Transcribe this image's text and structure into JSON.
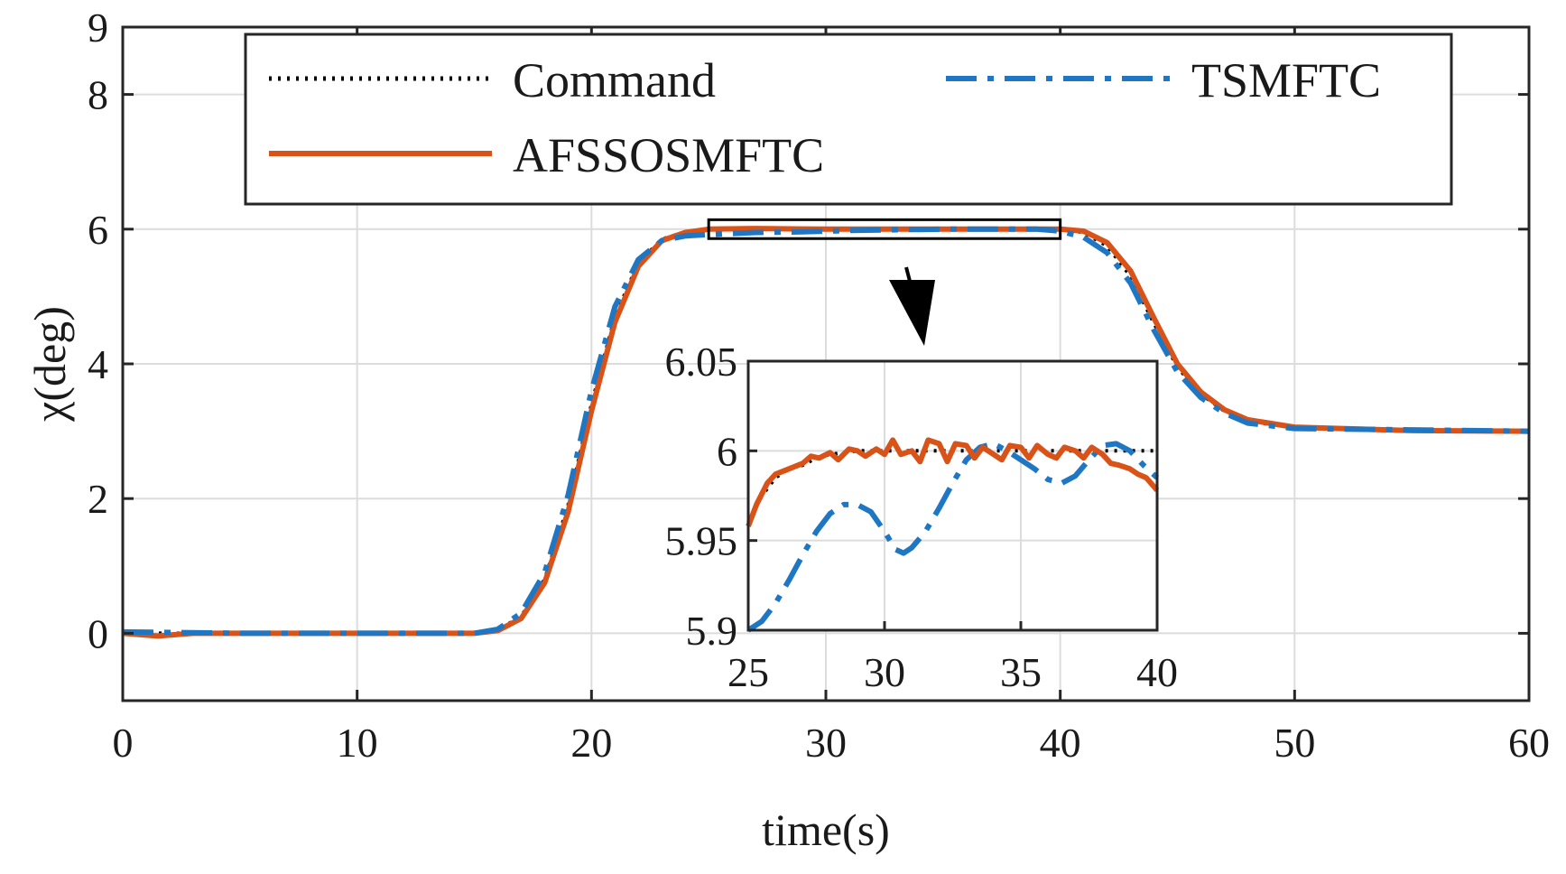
{
  "chart_data": {
    "type": "line",
    "title": "",
    "xlabel": "time(s)",
    "ylabel": "χ(deg)",
    "xlim": [
      0,
      60
    ],
    "ylim": [
      -1,
      9
    ],
    "xticks": [
      0,
      10,
      20,
      30,
      40,
      50,
      60
    ],
    "yticks": [
      0,
      2,
      4,
      6,
      8,
      9
    ],
    "grid": true,
    "legend": {
      "placement": "top",
      "entries": [
        {
          "name": "Command",
          "style": "dotted",
          "color": "#000000"
        },
        {
          "name": "TSMFTC",
          "style": "dashdot",
          "color": "#1f77c4"
        },
        {
          "name": "AFSSOSMFTC",
          "style": "solid",
          "color": "#d95319"
        }
      ]
    },
    "series": [
      {
        "name": "Command",
        "x": [
          0,
          15,
          16,
          17,
          18,
          19,
          20,
          21,
          22,
          23,
          24,
          25,
          27,
          30,
          40,
          41,
          42,
          43,
          44,
          45,
          46,
          47,
          48,
          50,
          55,
          60
        ],
        "y": [
          0,
          0,
          0.05,
          0.25,
          0.8,
          1.9,
          3.4,
          4.7,
          5.5,
          5.85,
          5.96,
          6,
          6,
          6,
          6,
          5.95,
          5.75,
          5.3,
          4.6,
          3.95,
          3.55,
          3.3,
          3.15,
          3.05,
          3,
          3
        ]
      },
      {
        "name": "TSMFTC",
        "x": [
          0,
          5,
          10,
          15,
          16,
          17,
          18,
          19,
          20,
          21,
          22,
          23,
          24,
          25,
          27,
          29,
          31,
          33,
          35,
          37,
          39,
          40,
          41,
          42,
          43,
          44,
          45,
          46,
          47,
          48,
          50,
          55,
          60
        ],
        "y": [
          0.02,
          0,
          0,
          0,
          0.06,
          0.3,
          0.9,
          2.05,
          3.6,
          4.85,
          5.55,
          5.83,
          5.9,
          5.92,
          5.95,
          5.96,
          5.98,
          5.99,
          6,
          6,
          6,
          5.97,
          5.88,
          5.65,
          5.2,
          4.5,
          3.88,
          3.5,
          3.27,
          3.12,
          3.04,
          3.02,
          3
        ]
      },
      {
        "name": "AFSSOSMFTC",
        "x": [
          0,
          1.5,
          3,
          15,
          16,
          17,
          18,
          19,
          20,
          21,
          22,
          23,
          24,
          25,
          27,
          30,
          40,
          41,
          42,
          43,
          44,
          45,
          46,
          47,
          48,
          50,
          55,
          60
        ],
        "y": [
          0,
          -0.04,
          0,
          0,
          0.04,
          0.22,
          0.75,
          1.8,
          3.3,
          4.62,
          5.45,
          5.83,
          5.95,
          6,
          6.01,
          6,
          6,
          5.97,
          5.8,
          5.38,
          4.68,
          4.0,
          3.58,
          3.32,
          3.17,
          3.06,
          3.01,
          3
        ]
      }
    ],
    "zoom_box": {
      "xlim": [
        25,
        40
      ],
      "ylim": [
        5.86,
        6.14
      ]
    },
    "inset": {
      "xlim": [
        25,
        40
      ],
      "ylim": [
        5.9,
        6.05
      ],
      "xticks": [
        25,
        30,
        35,
        40
      ],
      "ytick_labels": [
        "6.05",
        "6",
        "5.95",
        "5.9"
      ],
      "yticks": [
        6.05,
        6,
        5.95,
        5.9
      ],
      "series": [
        {
          "name": "Command",
          "x": [
            25,
            25.5,
            26,
            26.5,
            27,
            27.5,
            28,
            29,
            30,
            35,
            40
          ],
          "y": [
            5.96,
            5.975,
            5.985,
            5.99,
            5.992,
            5.996,
            5.998,
            6,
            6,
            6,
            6
          ]
        },
        {
          "name": "TSMFTC",
          "x": [
            25,
            25.5,
            26,
            26.5,
            27,
            27.5,
            28,
            28.5,
            29,
            29.5,
            30,
            30.4,
            30.7,
            31,
            31.5,
            32,
            32.5,
            33,
            33.5,
            34,
            34.5,
            35,
            35.5,
            36,
            36.5,
            37,
            37.5,
            38,
            38.5,
            39,
            39.5,
            40
          ],
          "y": [
            5.9,
            5.905,
            5.915,
            5.928,
            5.942,
            5.955,
            5.965,
            5.97,
            5.97,
            5.966,
            5.955,
            5.945,
            5.943,
            5.946,
            5.955,
            5.968,
            5.982,
            5.995,
            6.002,
            6.004,
            6.0,
            5.995,
            5.99,
            5.984,
            5.982,
            5.986,
            5.995,
            6.003,
            6.004,
            6.0,
            5.992,
            5.985
          ]
        },
        {
          "name": "AFSSOSMFTC",
          "x": [
            25,
            25.3,
            25.7,
            26,
            26.5,
            27,
            27.3,
            27.6,
            28,
            28.3,
            28.7,
            29,
            29.3,
            29.7,
            30,
            30.3,
            30.6,
            31,
            31.3,
            31.6,
            32,
            32.3,
            32.6,
            33,
            33.3,
            33.6,
            34,
            34.3,
            34.6,
            35,
            35.3,
            35.6,
            36,
            36.3,
            36.6,
            37,
            37.3,
            37.6,
            38,
            38.3,
            38.6,
            39,
            39.3,
            39.6,
            40
          ],
          "y": [
            5.958,
            5.97,
            5.982,
            5.987,
            5.99,
            5.993,
            5.997,
            5.996,
            5.999,
            5.995,
            6.001,
            6.0,
            5.997,
            6.001,
            5.998,
            6.006,
            5.998,
            6.0,
            5.994,
            6.006,
            6.004,
            5.994,
            6.004,
            6.003,
            5.996,
            6.002,
            5.998,
            5.995,
            6.003,
            6.002,
            5.996,
            6.003,
            5.998,
            5.996,
            6.002,
            6.0,
            5.996,
            6.002,
            5.998,
            5.993,
            5.992,
            5.99,
            5.987,
            5.985,
            5.978
          ]
        }
      ]
    }
  }
}
